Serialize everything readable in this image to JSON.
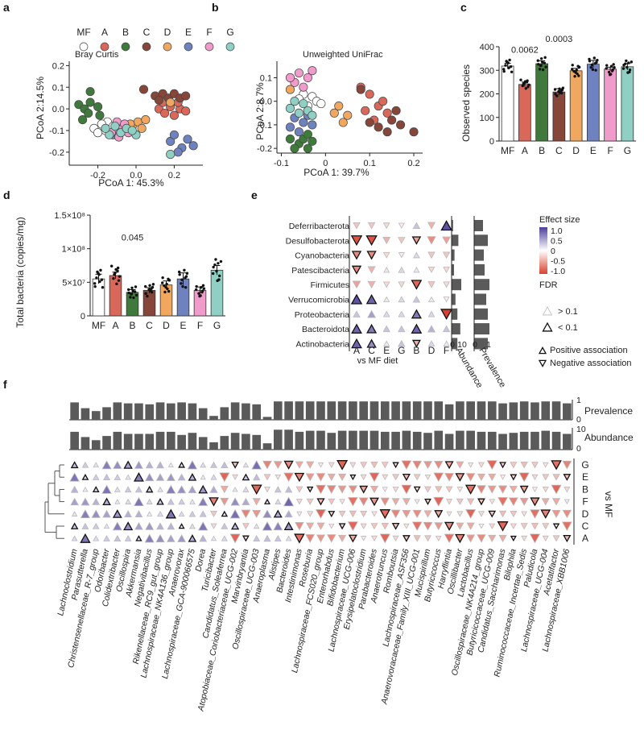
{
  "panel_letters": [
    "a",
    "b",
    "c",
    "d",
    "e",
    "f"
  ],
  "colors": {
    "MF": "#ffffff",
    "A": "#d9685a",
    "B": "#3f7a3c",
    "C": "#86463a",
    "D": "#f0a860",
    "E": "#6e82bf",
    "F": "#ef9ccb",
    "G": "#8fcfc4",
    "gray_bar": "#5a5a5a",
    "neg": "#d9402f",
    "pos": "#4b3f9a"
  },
  "chart_data": [
    {
      "id": "a",
      "type": "scatter",
      "title": "Bray Curtis",
      "legend": [
        "MF",
        "A",
        "B",
        "C",
        "D",
        "E",
        "F",
        "G"
      ],
      "xlabel": "PCoA 1: 45.3%",
      "ylabel": "PCoA 2:14.5%",
      "xlim": [
        -0.35,
        0.35
      ],
      "ylim": [
        -0.26,
        0.22
      ],
      "xticks": [
        -0.2,
        0.0,
        0.2
      ],
      "yticks": [
        -0.2,
        -0.1,
        0.0,
        0.1,
        0.2
      ],
      "xtick_labels": [
        "-0.2",
        "0.0",
        "0.2"
      ],
      "ytick_labels": [
        "-0.2",
        "-0.1",
        "0.0",
        "0.1",
        "0.2"
      ],
      "points": [
        {
          "g": "MF",
          "x": -0.22,
          "y": -0.09
        },
        {
          "g": "MF",
          "x": -0.2,
          "y": -0.11
        },
        {
          "g": "MF",
          "x": -0.15,
          "y": -0.06
        },
        {
          "g": "MF",
          "x": -0.12,
          "y": -0.08
        },
        {
          "g": "MF",
          "x": -0.16,
          "y": -0.1
        },
        {
          "g": "MF",
          "x": -0.18,
          "y": -0.07
        },
        {
          "g": "MF",
          "x": -0.1,
          "y": -0.09
        },
        {
          "g": "A",
          "x": 0.12,
          "y": 0.0
        },
        {
          "g": "A",
          "x": 0.15,
          "y": -0.02
        },
        {
          "g": "A",
          "x": 0.18,
          "y": 0.01
        },
        {
          "g": "A",
          "x": 0.2,
          "y": -0.03
        },
        {
          "g": "A",
          "x": 0.23,
          "y": 0.0
        },
        {
          "g": "A",
          "x": 0.14,
          "y": 0.03
        },
        {
          "g": "A",
          "x": 0.22,
          "y": 0.03
        },
        {
          "g": "A",
          "x": 0.26,
          "y": -0.01
        },
        {
          "g": "B",
          "x": -0.3,
          "y": 0.02
        },
        {
          "g": "B",
          "x": -0.27,
          "y": 0.0
        },
        {
          "g": "B",
          "x": -0.24,
          "y": 0.03
        },
        {
          "g": "B",
          "x": -0.2,
          "y": 0.01
        },
        {
          "g": "B",
          "x": -0.25,
          "y": -0.02
        },
        {
          "g": "B",
          "x": -0.28,
          "y": -0.05
        },
        {
          "g": "B",
          "x": -0.24,
          "y": 0.08
        },
        {
          "g": "B",
          "x": -0.19,
          "y": -0.03
        },
        {
          "g": "C",
          "x": 0.04,
          "y": 0.09
        },
        {
          "g": "C",
          "x": 0.1,
          "y": 0.06
        },
        {
          "g": "C",
          "x": 0.14,
          "y": 0.07
        },
        {
          "g": "C",
          "x": 0.17,
          "y": 0.05
        },
        {
          "g": "C",
          "x": 0.2,
          "y": 0.07
        },
        {
          "g": "C",
          "x": 0.23,
          "y": 0.05
        },
        {
          "g": "C",
          "x": 0.26,
          "y": 0.06
        },
        {
          "g": "C",
          "x": 0.12,
          "y": 0.04
        },
        {
          "g": "D",
          "x": -0.02,
          "y": -0.08
        },
        {
          "g": "D",
          "x": 0.01,
          "y": -0.06
        },
        {
          "g": "D",
          "x": -0.05,
          "y": -0.1
        },
        {
          "g": "D",
          "x": 0.03,
          "y": -0.09
        },
        {
          "g": "D",
          "x": -0.03,
          "y": -0.07
        },
        {
          "g": "D",
          "x": 0.05,
          "y": -0.05
        },
        {
          "g": "D",
          "x": 0.18,
          "y": 0.03
        },
        {
          "g": "E",
          "x": 0.18,
          "y": -0.15
        },
        {
          "g": "E",
          "x": 0.2,
          "y": -0.12
        },
        {
          "g": "E",
          "x": 0.24,
          "y": -0.18
        },
        {
          "g": "E",
          "x": 0.27,
          "y": -0.14
        },
        {
          "g": "E",
          "x": 0.3,
          "y": -0.17
        },
        {
          "g": "E",
          "x": -0.08,
          "y": -0.1
        },
        {
          "g": "E",
          "x": -0.12,
          "y": -0.12
        },
        {
          "g": "E",
          "x": 0.22,
          "y": -0.2
        },
        {
          "g": "F",
          "x": -0.1,
          "y": -0.06
        },
        {
          "g": "F",
          "x": -0.07,
          "y": -0.09
        },
        {
          "g": "F",
          "x": -0.13,
          "y": -0.11
        },
        {
          "g": "F",
          "x": -0.04,
          "y": -0.11
        },
        {
          "g": "F",
          "x": -0.09,
          "y": -0.13
        },
        {
          "g": "F",
          "x": -0.06,
          "y": -0.07
        },
        {
          "g": "G",
          "x": 0.18,
          "y": -0.21
        },
        {
          "g": "G",
          "x": -0.14,
          "y": -0.12
        },
        {
          "g": "G",
          "x": -0.11,
          "y": -0.08
        },
        {
          "g": "G",
          "x": -0.08,
          "y": -0.11
        },
        {
          "g": "G",
          "x": -0.05,
          "y": -0.09
        },
        {
          "g": "G",
          "x": -0.16,
          "y": -0.09
        },
        {
          "g": "G",
          "x": 0.0,
          "y": -0.12
        },
        {
          "g": "G",
          "x": -0.02,
          "y": -0.1
        }
      ]
    },
    {
      "id": "b",
      "type": "scatter",
      "title": "Unweighted UniFrac",
      "xlabel": "PCoA 1: 39.7%",
      "ylabel": "PCoA 2:8.7%",
      "xlim": [
        -0.11,
        0.22
      ],
      "ylim": [
        -0.22,
        0.17
      ],
      "xticks": [
        -0.1,
        0.0,
        0.1,
        0.2
      ],
      "yticks": [
        -0.2,
        -0.1,
        0.0,
        0.1
      ],
      "xtick_labels": [
        "-0.1",
        "0",
        "0.1",
        "0.2"
      ],
      "ytick_labels": [
        "-0.2",
        "-0.1",
        "0.0",
        "0.1"
      ],
      "points": [
        {
          "g": "MF",
          "x": -0.03,
          "y": 0.02
        },
        {
          "g": "MF",
          "x": -0.02,
          "y": 0.0
        },
        {
          "g": "MF",
          "x": -0.05,
          "y": 0.03
        },
        {
          "g": "MF",
          "x": -0.01,
          "y": -0.01
        },
        {
          "g": "MF",
          "x": -0.04,
          "y": -0.02
        },
        {
          "g": "MF",
          "x": -0.06,
          "y": 0.01
        },
        {
          "g": "A",
          "x": 0.08,
          "y": 0.06
        },
        {
          "g": "A",
          "x": 0.1,
          "y": 0.03
        },
        {
          "g": "A",
          "x": 0.12,
          "y": -0.02
        },
        {
          "g": "A",
          "x": 0.14,
          "y": -0.05
        },
        {
          "g": "A",
          "x": 0.11,
          "y": -0.08
        },
        {
          "g": "A",
          "x": 0.09,
          "y": -0.04
        },
        {
          "g": "A",
          "x": 0.13,
          "y": 0.0
        },
        {
          "g": "B",
          "x": -0.06,
          "y": -0.18
        },
        {
          "g": "B",
          "x": -0.04,
          "y": -0.2
        },
        {
          "g": "B",
          "x": -0.07,
          "y": -0.2
        },
        {
          "g": "B",
          "x": -0.05,
          "y": -0.16
        },
        {
          "g": "B",
          "x": -0.03,
          "y": -0.17
        },
        {
          "g": "B",
          "x": -0.08,
          "y": -0.16
        },
        {
          "g": "B",
          "x": -0.04,
          "y": -0.14
        },
        {
          "g": "C",
          "x": 0.1,
          "y": -0.09
        },
        {
          "g": "C",
          "x": 0.12,
          "y": -0.11
        },
        {
          "g": "C",
          "x": 0.15,
          "y": -0.08
        },
        {
          "g": "C",
          "x": 0.17,
          "y": -0.1
        },
        {
          "g": "C",
          "x": 0.2,
          "y": -0.13
        },
        {
          "g": "C",
          "x": 0.14,
          "y": -0.13
        },
        {
          "g": "C",
          "x": 0.08,
          "y": 0.05
        },
        {
          "g": "C",
          "x": 0.16,
          "y": -0.04
        },
        {
          "g": "D",
          "x": 0.02,
          "y": -0.05
        },
        {
          "g": "D",
          "x": 0.04,
          "y": -0.09
        },
        {
          "g": "D",
          "x": -0.08,
          "y": 0.05
        },
        {
          "g": "D",
          "x": 0.05,
          "y": -0.06
        },
        {
          "g": "D",
          "x": 0.03,
          "y": -0.02
        },
        {
          "g": "E",
          "x": -0.08,
          "y": -0.11
        },
        {
          "g": "E",
          "x": -0.05,
          "y": -0.09
        },
        {
          "g": "E",
          "x": -0.07,
          "y": -0.07
        },
        {
          "g": "E",
          "x": -0.03,
          "y": -0.1
        },
        {
          "g": "E",
          "x": -0.06,
          "y": -0.13
        },
        {
          "g": "E",
          "x": -0.04,
          "y": -0.06
        },
        {
          "g": "F",
          "x": -0.06,
          "y": 0.12
        },
        {
          "g": "F",
          "x": -0.04,
          "y": 0.1
        },
        {
          "g": "F",
          "x": -0.07,
          "y": 0.08
        },
        {
          "g": "F",
          "x": -0.03,
          "y": 0.13
        },
        {
          "g": "F",
          "x": -0.05,
          "y": 0.06
        },
        {
          "g": "F",
          "x": -0.08,
          "y": 0.1
        },
        {
          "g": "G",
          "x": -0.08,
          "y": -0.03
        },
        {
          "g": "G",
          "x": -0.06,
          "y": -0.05
        },
        {
          "g": "G",
          "x": -0.04,
          "y": -0.04
        },
        {
          "g": "G",
          "x": -0.07,
          "y": 0.0
        },
        {
          "g": "G",
          "x": -0.05,
          "y": -0.01
        },
        {
          "g": "G",
          "x": -0.03,
          "y": -0.06
        }
      ]
    },
    {
      "id": "c",
      "type": "bar",
      "ylabel": "Observed species",
      "categories": [
        "MF",
        "A",
        "B",
        "C",
        "D",
        "E",
        "F",
        "G"
      ],
      "values": [
        318,
        240,
        328,
        208,
        298,
        326,
        305,
        315
      ],
      "errors": [
        12,
        10,
        12,
        14,
        10,
        16,
        8,
        14
      ],
      "ylim": [
        0,
        400
      ],
      "yticks": [
        0,
        100,
        200,
        300,
        400
      ],
      "annotations": [
        {
          "x": "A",
          "text": "0.0062",
          "y": 375
        },
        {
          "x": "C",
          "text": "0.0003",
          "y": 420
        }
      ]
    },
    {
      "id": "d",
      "type": "bar",
      "ylabel": "Total bacteria (copies/mg)",
      "categories": [
        "MF",
        "A",
        "B",
        "C",
        "D",
        "E",
        "F",
        "G"
      ],
      "values": [
        55000000,
        60000000,
        35000000,
        38000000,
        46000000,
        55000000,
        38000000,
        68000000
      ],
      "errors": [
        7000000,
        5000000,
        4000000,
        4000000,
        6000000,
        9000000,
        5000000,
        7000000
      ],
      "ylim": [
        0,
        150000000
      ],
      "yticks": [
        0,
        50000000,
        100000000,
        150000000
      ],
      "ytick_labels": [
        "0",
        "5×10⁷",
        "1×10⁸",
        "1.5×10⁸"
      ],
      "annotations": [
        {
          "x": "B",
          "text": "0.045",
          "y": 112000000
        }
      ]
    },
    {
      "id": "e",
      "type": "heatmap",
      "rows": [
        "Deferribacterota",
        "Desulfobacterota",
        "Cyanobacteria",
        "Patescibacteria",
        "Firmicutes",
        "Verrucomicrobia",
        "Proteobacteria",
        "Bacteroidota",
        "Actinobacteria"
      ],
      "cols": [
        "A",
        "C",
        "E",
        "G",
        "B",
        "D",
        "F"
      ],
      "xlabel": "vs MF diet",
      "effect": [
        [
          -0.3,
          -0.3,
          -0.2,
          -0.1,
          0.3,
          -0.4,
          0.9
        ],
        [
          -0.9,
          -0.9,
          -0.4,
          -0.3,
          -0.5,
          -0.6,
          -0.5
        ],
        [
          -0.6,
          -0.6,
          -0.2,
          -0.1,
          0.2,
          -0.3,
          -0.3
        ],
        [
          -0.6,
          -0.4,
          0.1,
          0.2,
          0.1,
          -0.2,
          -0.2
        ],
        [
          -0.5,
          -0.4,
          -0.2,
          -0.2,
          -0.8,
          -0.3,
          -0.2
        ],
        [
          0.9,
          0.8,
          0.1,
          0.2,
          0.3,
          0.1,
          -0.1
        ],
        [
          0.3,
          0.5,
          0.2,
          0.2,
          0.7,
          0.2,
          -1.0
        ],
        [
          0.8,
          0.7,
          0.3,
          0.3,
          0.8,
          0.4,
          0.3
        ],
        [
          0.8,
          0.6,
          0.1,
          0.3,
          -0.4,
          0.2,
          0.1
        ]
      ],
      "sig": [
        [
          0,
          0,
          0,
          0,
          0,
          0,
          1
        ],
        [
          1,
          1,
          0,
          0,
          1,
          0,
          0
        ],
        [
          1,
          1,
          0,
          0,
          0,
          0,
          0
        ],
        [
          1,
          0,
          0,
          0,
          0,
          0,
          0
        ],
        [
          0,
          0,
          0,
          0,
          1,
          0,
          0
        ],
        [
          1,
          1,
          0,
          0,
          0,
          0,
          0
        ],
        [
          0,
          0,
          0,
          0,
          1,
          0,
          1
        ],
        [
          1,
          1,
          0,
          0,
          1,
          0,
          0
        ],
        [
          1,
          1,
          0,
          0,
          1,
          0,
          0
        ]
      ],
      "abundance": [
        1.5,
        7,
        3,
        2.5,
        10,
        4,
        6,
        9,
        6
      ],
      "prevalence": [
        0.55,
        0.85,
        0.6,
        0.65,
        0.95,
        0.75,
        0.85,
        0.95,
        0.85
      ],
      "abundance_label": "Abundance",
      "prevalence_label": "Prevalence",
      "abundance_ticks": [
        "0",
        "10"
      ],
      "prevalence_ticks": [
        "0",
        "1"
      ],
      "legend": {
        "effect_title": "Effect size",
        "effect_ticks": [
          "1.0",
          "0.5",
          "0",
          "-0.5",
          "-1.0"
        ],
        "fdr_title": "FDR",
        "fdr_high": "> 0.1",
        "fdr_low": "< 0.1",
        "positive": "Positive association",
        "negative": "Negative association"
      }
    },
    {
      "id": "f",
      "type": "heatmap",
      "rows": [
        "G",
        "E",
        "B",
        "F",
        "D",
        "C",
        "A"
      ],
      "row_axis_label": "vs MF",
      "prevalence_label": "Prevalence",
      "abundance_label": "Abundance",
      "prevalence_ticks": [
        "0",
        "1"
      ],
      "abundance_ticks": [
        "0",
        "10"
      ],
      "taxa": [
        "Lachnoclostridium",
        "Parasutterella",
        "Christensenellaceae_R-7_group",
        "Odoribacter",
        "Colidextribacter",
        "Oscillospira",
        "Akkermansia",
        "Negativibacillus",
        "Rikenellaceae_RC9_gut_group",
        "Lachnospiraceae_NK4A136_group",
        "Anaerovorax",
        "Lachnospiraceae_GCA-900066575",
        "Dorea",
        "Turicibacter",
        "Candidatus_Soleaferrea",
        "Atopobiaceae_Coriobacteriaceae_UCG-002",
        "Marvinbryantia",
        "Oscillospiraceae_UCG-003",
        "Anaeroplasma",
        "Alistipes",
        "Bacteroides",
        "Intestinimonas",
        "Roseburia",
        "Lachnospiraceae_FCS020_group",
        "Enterorhabdus",
        "Bifidobacterium",
        "Lachnospiraceae_UCG-006",
        "Erysipelatoclostridium",
        "Parabacteroides",
        "Anaerotruncus",
        "Romboutsia",
        "Lachnospiraceae_ASF356",
        "Anaerovoracaceae_Family_XIII_UCG-001",
        "Mucispirillum",
        "Butyricicoccus",
        "Harryflintia",
        "Oscillibacter",
        "Lactobacillus",
        "Oscillospiraceae_NK4A214_group",
        "Butyricicoccaceae_UCG-009",
        "Candidatus_Saccharimonas",
        "Bilophila",
        "Ruminococcaceae_Incertae_Sedis",
        "Paludicola",
        "Lachnospiraceae_UCG-004",
        "Acetatifactor",
        "Lachnospiraceae_XBB1006"
      ],
      "gray_taxa": [
        "Dorea",
        "Turicibacter"
      ],
      "prevalence": [
        0.9,
        0.6,
        0.45,
        0.65,
        0.9,
        0.85,
        0.85,
        0.8,
        0.9,
        0.85,
        0.9,
        0.85,
        0.6,
        0.2,
        0.65,
        0.9,
        0.85,
        0.8,
        0.15,
        0.95,
        0.95,
        0.95,
        0.95,
        0.95,
        0.95,
        0.95,
        0.95,
        0.95,
        0.95,
        0.95,
        0.95,
        0.95,
        0.95,
        0.95,
        0.95,
        0.8,
        0.95,
        0.95,
        0.95,
        0.95,
        0.85,
        0.9,
        0.95,
        0.9,
        0.95,
        0.95,
        0.85
      ],
      "abundance": [
        8.5,
        6,
        4.5,
        6.5,
        8.5,
        7.5,
        7.5,
        7.5,
        8.5,
        8.5,
        7,
        8,
        6,
        3.5,
        6.5,
        8,
        7.5,
        7,
        3,
        9.5,
        9.5,
        8.5,
        9,
        9,
        8,
        9,
        9,
        9,
        9,
        8.5,
        8.5,
        9,
        8.5,
        8,
        9,
        7.5,
        9,
        9,
        8.5,
        8.5,
        7.5,
        8,
        8.5,
        8.5,
        9,
        8.5,
        7.5
      ]
    }
  ]
}
